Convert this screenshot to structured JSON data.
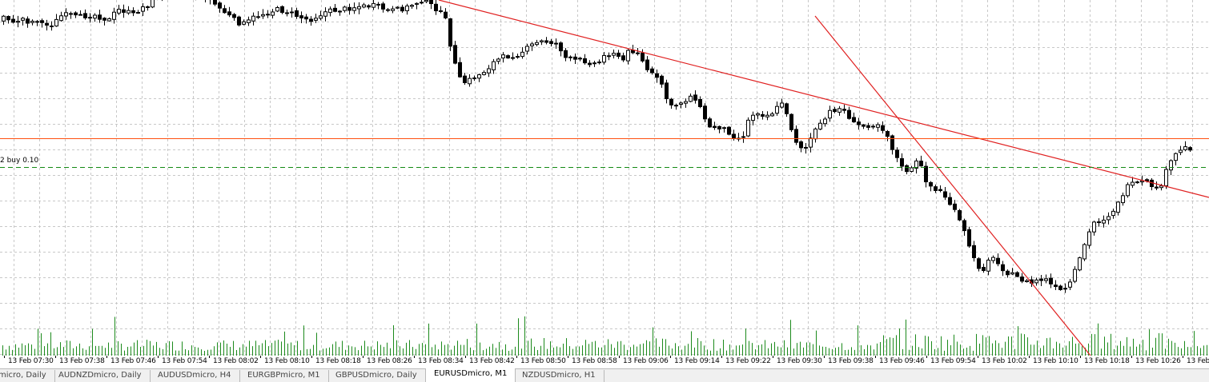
{
  "chart_data": {
    "type": "candlestick",
    "symbol": "EURUSDmicro",
    "timeframe": "M1",
    "y_range": [
      0,
      445
    ],
    "x_tick_labels": [
      "13 Feb 07:30",
      "13 Feb 07:38",
      "13 Feb 07:46",
      "13 Feb 07:54",
      "13 Feb 08:02",
      "13 Feb 08:10",
      "13 Feb 08:18",
      "13 Feb 08:26",
      "13 Feb 08:34",
      "13 Feb 08:42",
      "13 Feb 08:50",
      "13 Feb 08:58",
      "13 Feb 09:06",
      "13 Feb 09:14",
      "13 Feb 09:22",
      "13 Feb 09:30",
      "13 Feb 09:38",
      "13 Feb 09:46",
      "13 Feb 09:54",
      "13 Feb 10:02",
      "13 Feb 10:10",
      "13 Feb 10:18",
      "13 Feb 10:26",
      "13 Feb"
    ],
    "candle_anchors": [
      [
        0,
        25
      ],
      [
        10,
        18
      ],
      [
        20,
        30
      ],
      [
        30,
        22
      ],
      [
        40,
        28
      ],
      [
        50,
        25
      ],
      [
        60,
        32
      ],
      [
        70,
        30
      ],
      [
        80,
        20
      ],
      [
        90,
        18
      ],
      [
        100,
        22
      ],
      [
        110,
        20
      ],
      [
        120,
        18
      ],
      [
        130,
        22
      ],
      [
        140,
        25
      ],
      [
        150,
        12
      ],
      [
        160,
        14
      ],
      [
        170,
        18
      ],
      [
        180,
        10
      ],
      [
        190,
        5
      ],
      [
        200,
        -5
      ],
      [
        220,
        -10
      ],
      [
        240,
        -8
      ],
      [
        260,
        -5
      ],
      [
        280,
        12
      ],
      [
        290,
        20
      ],
      [
        300,
        28
      ],
      [
        310,
        30
      ],
      [
        320,
        22
      ],
      [
        330,
        18
      ],
      [
        340,
        15
      ],
      [
        350,
        12
      ],
      [
        360,
        14
      ],
      [
        370,
        18
      ],
      [
        380,
        22
      ],
      [
        390,
        25
      ],
      [
        400,
        20
      ],
      [
        410,
        15
      ],
      [
        420,
        13
      ],
      [
        430,
        12
      ],
      [
        440,
        10
      ],
      [
        450,
        8
      ],
      [
        460,
        8
      ],
      [
        470,
        7
      ],
      [
        480,
        10
      ],
      [
        490,
        14
      ],
      [
        500,
        12
      ],
      [
        510,
        10
      ],
      [
        520,
        5
      ],
      [
        530,
        0
      ],
      [
        540,
        5
      ],
      [
        550,
        12
      ],
      [
        560,
        25
      ],
      [
        570,
        75
      ],
      [
        580,
        105
      ],
      [
        590,
        100
      ],
      [
        600,
        95
      ],
      [
        610,
        88
      ],
      [
        620,
        78
      ],
      [
        630,
        72
      ],
      [
        640,
        70
      ],
      [
        650,
        68
      ],
      [
        660,
        62
      ],
      [
        670,
        55
      ],
      [
        680,
        52
      ],
      [
        690,
        52
      ],
      [
        700,
        55
      ],
      [
        710,
        72
      ],
      [
        720,
        75
      ],
      [
        730,
        75
      ],
      [
        740,
        78
      ],
      [
        750,
        80
      ],
      [
        760,
        68
      ],
      [
        770,
        65
      ],
      [
        780,
        78
      ],
      [
        790,
        62
      ],
      [
        800,
        65
      ],
      [
        810,
        85
      ],
      [
        820,
        95
      ],
      [
        830,
        105
      ],
      [
        840,
        135
      ],
      [
        850,
        130
      ],
      [
        860,
        125
      ],
      [
        870,
        118
      ],
      [
        880,
        140
      ],
      [
        890,
        160
      ],
      [
        900,
        158
      ],
      [
        910,
        162
      ],
      [
        920,
        170
      ],
      [
        930,
        175
      ],
      [
        940,
        145
      ],
      [
        950,
        140
      ],
      [
        960,
        145
      ],
      [
        970,
        140
      ],
      [
        980,
        128
      ],
      [
        990,
        155
      ],
      [
        1000,
        182
      ],
      [
        1010,
        185
      ],
      [
        1020,
        165
      ],
      [
        1030,
        155
      ],
      [
        1040,
        140
      ],
      [
        1050,
        135
      ],
      [
        1060,
        140
      ],
      [
        1070,
        155
      ],
      [
        1080,
        158
      ],
      [
        1090,
        156
      ],
      [
        1100,
        155
      ],
      [
        1110,
        165
      ],
      [
        1120,
        190
      ],
      [
        1130,
        210
      ],
      [
        1140,
        215
      ],
      [
        1150,
        200
      ],
      [
        1160,
        225
      ],
      [
        1170,
        238
      ],
      [
        1180,
        240
      ],
      [
        1190,
        255
      ],
      [
        1200,
        272
      ],
      [
        1210,
        295
      ],
      [
        1220,
        325
      ],
      [
        1230,
        340
      ],
      [
        1240,
        320
      ],
      [
        1250,
        330
      ],
      [
        1260,
        340
      ],
      [
        1270,
        345
      ],
      [
        1280,
        350
      ],
      [
        1290,
        355
      ],
      [
        1300,
        350
      ],
      [
        1310,
        350
      ],
      [
        1320,
        360
      ],
      [
        1330,
        365
      ],
      [
        1340,
        355
      ],
      [
        1350,
        330
      ],
      [
        1360,
        300
      ],
      [
        1370,
        278
      ],
      [
        1380,
        275
      ],
      [
        1390,
        268
      ],
      [
        1400,
        255
      ],
      [
        1410,
        235
      ],
      [
        1420,
        230
      ],
      [
        1430,
        228
      ],
      [
        1440,
        230
      ],
      [
        1450,
        240
      ],
      [
        1460,
        215
      ],
      [
        1470,
        195
      ],
      [
        1480,
        185
      ]
    ],
    "lines": [
      {
        "name": "trendline-1",
        "color": "#e02020",
        "from": [
          548,
          0
        ],
        "to": [
          1510,
          247
        ]
      },
      {
        "name": "trendline-2",
        "color": "#e02020",
        "from": [
          1018,
          20
        ],
        "to": [
          1362,
          445
        ]
      },
      {
        "name": "horizontal-level",
        "color": "#ff5010",
        "y": 173
      },
      {
        "name": "buy-order-line",
        "color": "#138a13",
        "y": 209,
        "dashed": true
      }
    ],
    "order_label": "2 buy 0.10",
    "volume_color": "#1c8a1c",
    "grid": true,
    "grid_color": "#c8c8c8",
    "candle_bull_fill": "#ffffff",
    "candle_bear_fill": "#000000"
  },
  "tabs": [
    {
      "label": "micro, Daily",
      "active": false
    },
    {
      "label": "AUDNZDmicro, Daily",
      "active": false
    },
    {
      "label": "AUDUSDmicro, H4",
      "active": false
    },
    {
      "label": "EURGBPmicro, M1",
      "active": false
    },
    {
      "label": "GBPUSDmicro, Daily",
      "active": false
    },
    {
      "label": "EURUSDmicro, M1",
      "active": true
    },
    {
      "label": "NZDUSDmicro, H1",
      "active": false
    }
  ]
}
